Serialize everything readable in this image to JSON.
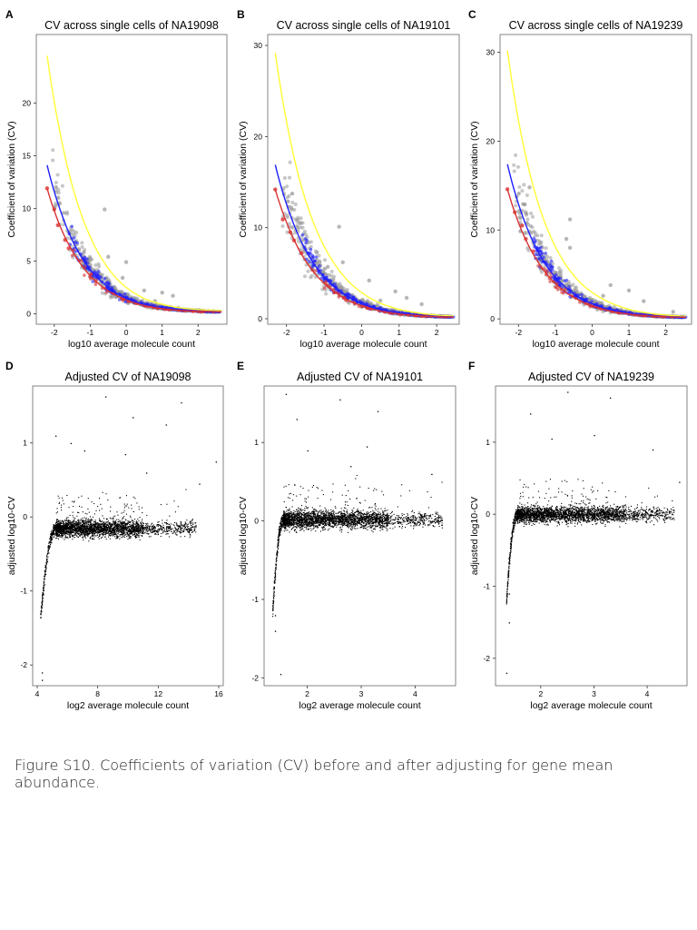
{
  "caption": "Figure S10. Coefficients of variation (CV) before and after adjusting for gene mean abundance.",
  "colors": {
    "yellow": "#ffff33",
    "blue": "#1f1fff",
    "red": "#d93232",
    "gray": "#999999",
    "black": "#000000"
  },
  "chart_data": [
    {
      "panel": "A",
      "type": "scatter",
      "title": "CV across single cells of NA19098",
      "xlabel": "log10 average molecule count",
      "ylabel": "Coefficient of variation (CV)",
      "xlim": [
        -2.5,
        2.8
      ],
      "ylim": [
        -1,
        26.5
      ],
      "xticks": [
        -2,
        -1,
        0,
        1,
        2
      ],
      "yticks": [
        0,
        5,
        10,
        15,
        20
      ],
      "x_range": [
        -2.2,
        2.65
      ],
      "lines": [
        {
          "color": "yellow",
          "points": [
            [
              -2.2,
              24.5
            ],
            [
              -1.8,
              16.5
            ],
            [
              -1.4,
              11.0
            ],
            [
              -1.0,
              7.3
            ],
            [
              -0.6,
              4.8
            ],
            [
              -0.2,
              3.1
            ],
            [
              0.2,
              2.0
            ],
            [
              0.6,
              1.3
            ],
            [
              1.0,
              0.9
            ],
            [
              1.4,
              0.6
            ],
            [
              1.8,
              0.45
            ],
            [
              2.2,
              0.35
            ],
            [
              2.65,
              0.3
            ]
          ]
        },
        {
          "color": "blue",
          "points": [
            [
              -2.2,
              14.1
            ],
            [
              -1.8,
              9.5
            ],
            [
              -1.4,
              6.3
            ],
            [
              -1.0,
              4.2
            ],
            [
              -0.6,
              2.8
            ],
            [
              -0.2,
              1.8
            ],
            [
              0.2,
              1.2
            ],
            [
              0.6,
              0.8
            ],
            [
              1.0,
              0.55
            ],
            [
              1.4,
              0.4
            ],
            [
              1.8,
              0.3
            ],
            [
              2.2,
              0.22
            ],
            [
              2.65,
              0.18
            ]
          ]
        },
        {
          "color": "red",
          "points": [
            [
              -2.2,
              11.9
            ],
            [
              -1.8,
              8.0
            ],
            [
              -1.4,
              5.4
            ],
            [
              -1.0,
              3.6
            ],
            [
              -0.6,
              2.4
            ],
            [
              -0.2,
              1.6
            ],
            [
              0.2,
              1.05
            ],
            [
              0.6,
              0.7
            ],
            [
              1.0,
              0.48
            ],
            [
              1.4,
              0.34
            ],
            [
              1.8,
              0.25
            ],
            [
              2.2,
              0.2
            ],
            [
              2.65,
              0.16
            ]
          ]
        }
      ],
      "outliers": [
        [
          -0.6,
          9.9
        ],
        [
          -0.5,
          5.4
        ],
        [
          0.0,
          4.9
        ],
        [
          -0.1,
          3.4
        ],
        [
          0.5,
          2.2
        ],
        [
          1.0,
          2.0
        ],
        [
          1.3,
          1.7
        ],
        [
          0.8,
          1.2
        ]
      ],
      "red_points": [
        [
          -2.2,
          11.9
        ],
        [
          -2.0,
          9.9
        ],
        [
          -1.9,
          8.4
        ],
        [
          -1.7,
          7.0
        ],
        [
          -1.6,
          6.2
        ]
      ]
    },
    {
      "panel": "B",
      "type": "scatter",
      "title": "CV across single cells of NA19101",
      "xlabel": "log10 average molecule count",
      "ylabel": "Coefficient of variation (CV)",
      "xlim": [
        -2.5,
        2.6
      ],
      "ylim": [
        -0.6,
        31.2
      ],
      "xticks": [
        -2,
        -1,
        0,
        1,
        2
      ],
      "yticks": [
        0,
        10,
        20,
        30
      ],
      "x_range": [
        -2.3,
        2.45
      ],
      "lines": [
        {
          "color": "yellow",
          "points": [
            [
              -2.3,
              29.2
            ],
            [
              -1.9,
              19.6
            ],
            [
              -1.5,
              13.1
            ],
            [
              -1.1,
              8.8
            ],
            [
              -0.7,
              5.9
            ],
            [
              -0.3,
              3.9
            ],
            [
              0.1,
              2.6
            ],
            [
              0.5,
              1.7
            ],
            [
              0.9,
              1.15
            ],
            [
              1.3,
              0.78
            ],
            [
              1.7,
              0.53
            ],
            [
              2.1,
              0.37
            ],
            [
              2.45,
              0.3
            ]
          ]
        },
        {
          "color": "blue",
          "points": [
            [
              -2.3,
              16.9
            ],
            [
              -1.9,
              11.4
            ],
            [
              -1.5,
              7.6
            ],
            [
              -1.1,
              5.1
            ],
            [
              -0.7,
              3.4
            ],
            [
              -0.3,
              2.3
            ],
            [
              0.1,
              1.5
            ],
            [
              0.5,
              1.0
            ],
            [
              0.9,
              0.68
            ],
            [
              1.3,
              0.46
            ],
            [
              1.7,
              0.32
            ],
            [
              2.1,
              0.24
            ],
            [
              2.45,
              0.2
            ]
          ]
        },
        {
          "color": "red",
          "points": [
            [
              -2.3,
              14.2
            ],
            [
              -1.9,
              9.6
            ],
            [
              -1.5,
              6.4
            ],
            [
              -1.1,
              4.3
            ],
            [
              -0.7,
              2.9
            ],
            [
              -0.3,
              1.9
            ],
            [
              0.1,
              1.3
            ],
            [
              0.5,
              0.86
            ],
            [
              0.9,
              0.58
            ],
            [
              1.3,
              0.4
            ],
            [
              1.7,
              0.28
            ],
            [
              2.1,
              0.21
            ],
            [
              2.45,
              0.18
            ]
          ]
        }
      ],
      "outliers": [
        [
          -0.6,
          10.1
        ],
        [
          -0.9,
          5.7
        ],
        [
          -0.5,
          6.2
        ],
        [
          0.2,
          4.2
        ],
        [
          0.9,
          3.0
        ],
        [
          1.2,
          2.3
        ],
        [
          1.6,
          1.6
        ],
        [
          0.5,
          2.0
        ]
      ],
      "red_points": [
        [
          -2.3,
          14.2
        ],
        [
          -2.1,
          10.9
        ],
        [
          -1.9,
          9.5
        ],
        [
          -1.8,
          8.6
        ],
        [
          -1.6,
          7.2
        ]
      ]
    },
    {
      "panel": "C",
      "type": "scatter",
      "title": "CV across single cells of NA19239",
      "xlabel": "log10 average molecule count",
      "ylabel": "Coefficient of variation (CV)",
      "xlim": [
        -2.5,
        2.7
      ],
      "ylim": [
        -0.6,
        32.0
      ],
      "xticks": [
        -2,
        -1,
        0,
        1,
        2
      ],
      "yticks": [
        0,
        10,
        20,
        30
      ],
      "x_range": [
        -2.3,
        2.55
      ],
      "lines": [
        {
          "color": "yellow",
          "points": [
            [
              -2.3,
              30.2
            ],
            [
              -1.9,
              20.2
            ],
            [
              -1.5,
              13.5
            ],
            [
              -1.1,
              9.0
            ],
            [
              -0.7,
              6.0
            ],
            [
              -0.3,
              4.0
            ],
            [
              0.1,
              2.7
            ],
            [
              0.5,
              1.8
            ],
            [
              0.9,
              1.2
            ],
            [
              1.3,
              0.8
            ],
            [
              1.7,
              0.55
            ],
            [
              2.1,
              0.4
            ],
            [
              2.55,
              0.3
            ]
          ]
        },
        {
          "color": "blue",
          "points": [
            [
              -2.3,
              17.4
            ],
            [
              -1.9,
              11.7
            ],
            [
              -1.5,
              7.8
            ],
            [
              -1.1,
              5.2
            ],
            [
              -0.7,
              3.5
            ],
            [
              -0.3,
              2.3
            ],
            [
              0.1,
              1.55
            ],
            [
              0.5,
              1.04
            ],
            [
              0.9,
              0.7
            ],
            [
              1.3,
              0.47
            ],
            [
              1.7,
              0.33
            ],
            [
              2.1,
              0.24
            ],
            [
              2.55,
              0.2
            ]
          ]
        },
        {
          "color": "red",
          "points": [
            [
              -2.3,
              14.6
            ],
            [
              -1.9,
              9.8
            ],
            [
              -1.5,
              6.6
            ],
            [
              -1.1,
              4.4
            ],
            [
              -0.7,
              2.95
            ],
            [
              -0.3,
              2.0
            ],
            [
              0.1,
              1.3
            ],
            [
              0.5,
              0.88
            ],
            [
              0.9,
              0.6
            ],
            [
              1.3,
              0.41
            ],
            [
              1.7,
              0.29
            ],
            [
              2.1,
              0.22
            ],
            [
              2.55,
              0.18
            ]
          ]
        }
      ],
      "outliers": [
        [
          -1.7,
          14.8
        ],
        [
          -0.6,
          11.2
        ],
        [
          -0.7,
          9.0
        ],
        [
          -0.6,
          8.0
        ],
        [
          0.5,
          3.8
        ],
        [
          1.0,
          3.2
        ],
        [
          1.4,
          2.0
        ],
        [
          0.3,
          2.6
        ],
        [
          2.2,
          0.8
        ]
      ],
      "red_points": [
        [
          -2.3,
          14.6
        ],
        [
          -2.1,
          12.0
        ],
        [
          -1.9,
          10.5
        ],
        [
          -1.8,
          9.0
        ],
        [
          -1.6,
          7.6
        ]
      ]
    },
    {
      "panel": "D",
      "type": "scatter",
      "title": "Adjusted CV of NA19098",
      "xlabel": "log2 average molecule count",
      "ylabel": "adjusted log10-CV",
      "xlim": [
        3.7,
        16.3
      ],
      "ylim": [
        -2.28,
        1.77
      ],
      "xticks": [
        4,
        8,
        12,
        16
      ],
      "yticks": [
        -2,
        -1,
        0,
        1
      ],
      "body": {
        "x_start": 4.2,
        "x_plateau": 5.2,
        "x_dense_end": 11.0,
        "x_end": 14.5,
        "y_center": -0.15,
        "y_spread": 0.11,
        "min_y": -2.2
      },
      "outliers": [
        [
          8.5,
          1.63
        ],
        [
          13.5,
          1.55
        ],
        [
          5.2,
          1.1
        ],
        [
          10.3,
          1.35
        ],
        [
          12.5,
          1.25
        ],
        [
          15.8,
          0.75
        ],
        [
          9.8,
          0.85
        ],
        [
          7.1,
          0.9
        ],
        [
          11.2,
          0.6
        ],
        [
          14.7,
          0.45
        ],
        [
          6.2,
          1.0
        ],
        [
          4.3,
          -2.2
        ],
        [
          4.3,
          -2.1
        ],
        [
          4.2,
          -1.35
        ]
      ]
    },
    {
      "panel": "E",
      "type": "scatter",
      "title": "Adjusted CV of NA19101",
      "xlabel": "log2 average molecule count",
      "ylabel": "adjusted log10-CV",
      "xlim": [
        1.2,
        4.75
      ],
      "ylim": [
        -2.1,
        1.72
      ],
      "xticks": [
        2,
        3,
        4
      ],
      "yticks": [
        -2,
        -1,
        0,
        1
      ],
      "body": {
        "x_start": 1.35,
        "x_plateau": 1.55,
        "x_dense_end": 3.5,
        "x_end": 4.5,
        "y_center": 0.02,
        "y_spread": 0.11,
        "min_y": -2.0
      },
      "outliers": [
        [
          1.6,
          1.62
        ],
        [
          2.6,
          1.55
        ],
        [
          3.3,
          1.4
        ],
        [
          1.8,
          1.3
        ],
        [
          2.0,
          0.9
        ],
        [
          3.1,
          0.95
        ],
        [
          4.3,
          0.6
        ],
        [
          2.8,
          0.7
        ],
        [
          1.4,
          -1.2
        ],
        [
          1.4,
          -1.4
        ],
        [
          1.5,
          -1.95
        ]
      ]
    },
    {
      "panel": "F",
      "type": "scatter",
      "title": "Adjusted CV of NA19239",
      "xlabel": "log2 average molecule count",
      "ylabel": "adjusted log10-CV",
      "xlim": [
        1.15,
        4.75
      ],
      "ylim": [
        -2.38,
        1.78
      ],
      "xticks": [
        2,
        3,
        4
      ],
      "yticks": [
        -2,
        -1,
        0,
        1
      ],
      "body": {
        "x_start": 1.35,
        "x_plateau": 1.55,
        "x_dense_end": 3.6,
        "x_end": 4.5,
        "y_center": 0.0,
        "y_spread": 0.11,
        "min_y": -2.2
      },
      "outliers": [
        [
          2.5,
          1.7
        ],
        [
          3.3,
          1.62
        ],
        [
          1.8,
          1.4
        ],
        [
          2.2,
          1.05
        ],
        [
          3.0,
          1.1
        ],
        [
          4.1,
          0.9
        ],
        [
          4.6,
          0.45
        ],
        [
          1.4,
          -1.5
        ],
        [
          1.35,
          -2.2
        ],
        [
          1.4,
          -1.1
        ]
      ]
    }
  ]
}
